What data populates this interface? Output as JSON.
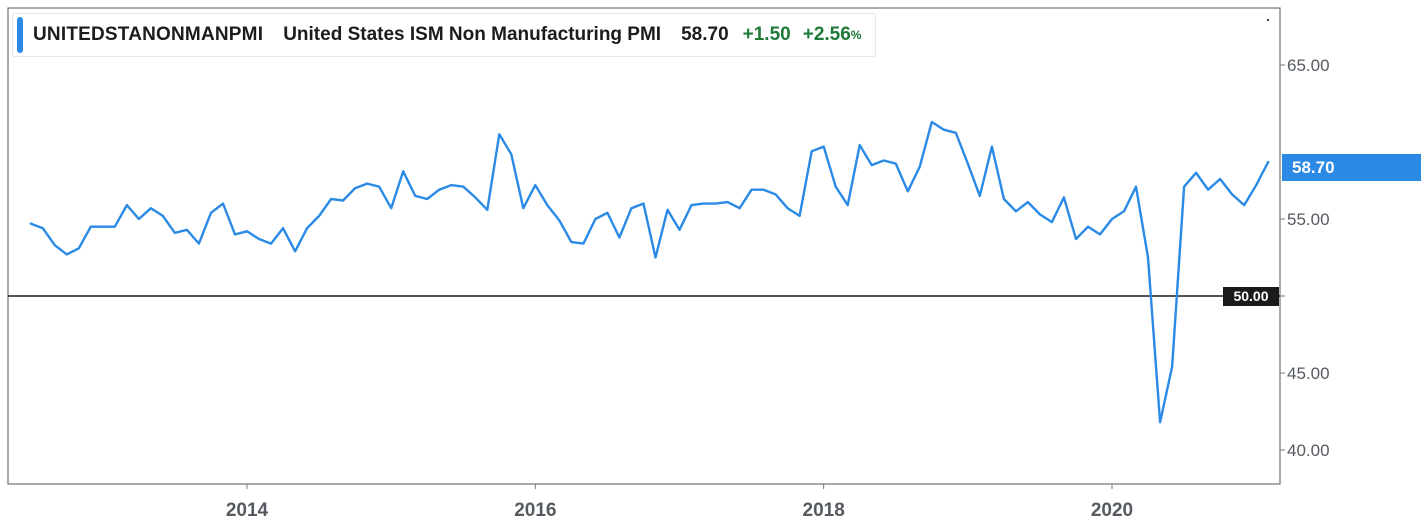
{
  "legend": {
    "ticker": "UNITEDSTANONMANPMI",
    "name": "United States ISM Non Manufacturing PMI",
    "last": "58.70",
    "change": "+1.50",
    "change_pct": "+2.56",
    "pct_symbol": "%"
  },
  "badges": {
    "last_value": "58.70",
    "reference_value": "50.00"
  },
  "colors": {
    "series": "#2b8ae6",
    "reference_line": "#1a1a1a",
    "positive_change": "#1f7a3a",
    "axis_text": "#555a60"
  },
  "chart_data": {
    "type": "line",
    "title": "",
    "xlabel": "",
    "ylabel": "",
    "x_ticks": [
      "2014",
      "2016",
      "2018",
      "2020"
    ],
    "y_ticks": [
      "40.00",
      "45.00",
      "50.00",
      "55.00",
      "65.00"
    ],
    "ylim": [
      40,
      67.5
    ],
    "xlim": [
      "2012-07",
      "2021-02"
    ],
    "grid": false,
    "reference_line": 50.0,
    "series": [
      {
        "x": [
          "2012-07",
          "2012-08",
          "2012-09",
          "2012-10",
          "2012-11",
          "2012-12",
          "2013-01",
          "2013-02",
          "2013-03",
          "2013-04",
          "2013-05",
          "2013-06",
          "2013-07",
          "2013-08",
          "2013-09",
          "2013-10",
          "2013-11",
          "2013-12",
          "2014-01",
          "2014-02",
          "2014-03",
          "2014-04",
          "2014-05",
          "2014-06",
          "2014-07",
          "2014-08",
          "2014-09",
          "2014-10",
          "2014-11",
          "2014-12",
          "2015-01",
          "2015-02",
          "2015-03",
          "2015-04",
          "2015-05",
          "2015-06",
          "2015-07",
          "2015-08",
          "2015-09",
          "2015-10",
          "2015-11",
          "2015-12",
          "2016-01",
          "2016-02",
          "2016-03",
          "2016-04",
          "2016-05",
          "2016-06",
          "2016-07",
          "2016-08",
          "2016-09",
          "2016-10",
          "2016-11",
          "2016-12",
          "2017-01",
          "2017-02",
          "2017-03",
          "2017-04",
          "2017-05",
          "2017-06",
          "2017-07",
          "2017-08",
          "2017-09",
          "2017-10",
          "2017-11",
          "2017-12",
          "2018-01",
          "2018-02",
          "2018-03",
          "2018-04",
          "2018-05",
          "2018-06",
          "2018-07",
          "2018-08",
          "2018-09",
          "2018-10",
          "2018-11",
          "2018-12",
          "2019-01",
          "2019-02",
          "2019-03",
          "2019-04",
          "2019-05",
          "2019-06",
          "2019-07",
          "2019-08",
          "2019-09",
          "2019-10",
          "2019-11",
          "2019-12",
          "2020-01",
          "2020-02",
          "2020-03",
          "2020-04",
          "2020-05",
          "2020-06",
          "2020-07",
          "2020-08",
          "2020-09",
          "2020-10",
          "2020-11",
          "2020-12",
          "2021-01",
          "2021-02"
        ],
        "values": [
          54.7,
          54.4,
          53.3,
          52.7,
          53.1,
          54.5,
          54.5,
          54.5,
          55.9,
          55.0,
          55.7,
          55.2,
          54.1,
          54.3,
          53.4,
          55.4,
          56.0,
          54.0,
          54.2,
          53.7,
          53.4,
          54.4,
          52.9,
          54.4,
          55.2,
          56.3,
          56.2,
          57.0,
          57.3,
          57.1,
          55.7,
          58.1,
          56.5,
          56.3,
          56.9,
          57.2,
          57.1,
          56.4,
          55.6,
          60.5,
          59.2,
          55.7,
          57.2,
          55.9,
          54.9,
          53.5,
          53.4,
          55.0,
          55.4,
          53.8,
          55.7,
          56.0,
          52.5,
          55.6,
          54.3,
          55.9,
          56.0,
          56.0,
          56.1,
          55.7,
          56.9,
          56.9,
          56.6,
          55.7,
          55.2,
          59.4,
          59.7,
          57.1,
          55.9,
          59.8,
          58.5,
          58.8,
          58.6,
          56.8,
          58.4,
          61.3,
          60.8,
          60.6,
          58.6,
          56.5,
          59.7,
          56.3,
          55.5,
          56.1,
          55.3,
          54.8,
          56.4,
          53.7,
          54.5,
          54.0,
          55.0,
          55.5,
          57.1,
          52.5,
          41.8,
          45.4,
          57.1,
          58.0,
          56.9,
          57.6,
          56.6,
          55.9,
          57.2,
          58.7
        ]
      }
    ]
  }
}
